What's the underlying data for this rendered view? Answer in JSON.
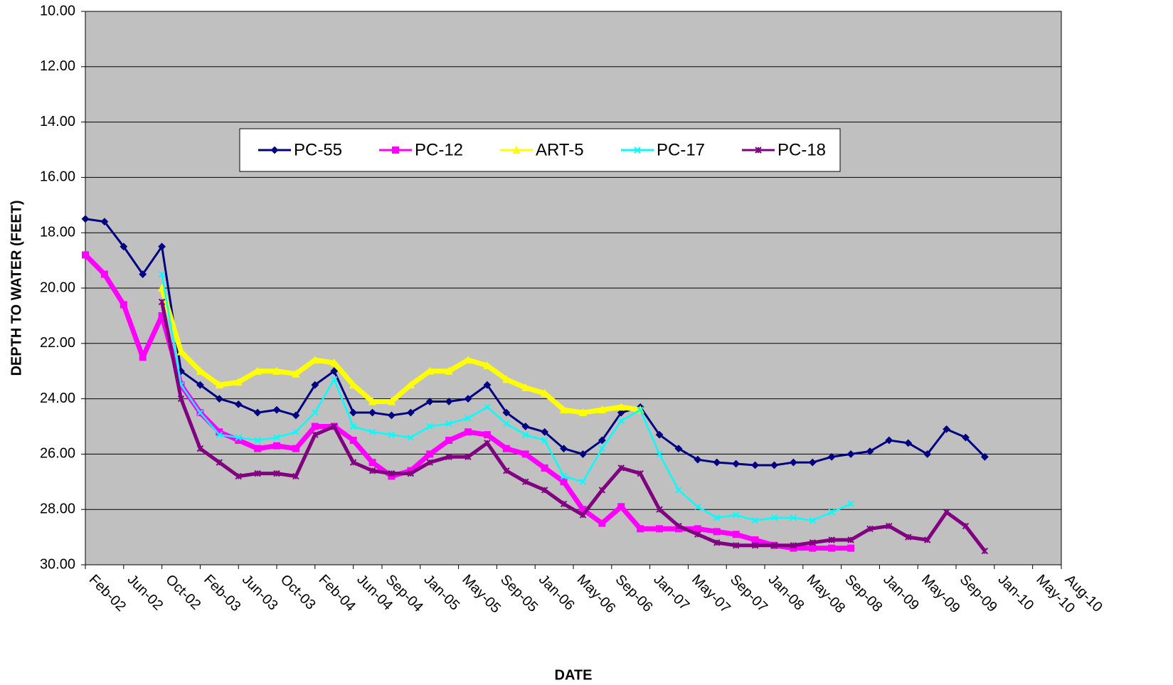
{
  "chart_data": {
    "type": "line",
    "y_label": "DEPTH TO WATER (FEET)",
    "x_label": "DATE",
    "ylim": [
      10,
      30
    ],
    "y_reversed": true,
    "grid": true,
    "legend": "top-center",
    "yticks": [
      {
        "value": 10,
        "label": "10.00"
      },
      {
        "value": 12,
        "label": "12.00"
      },
      {
        "value": 14,
        "label": "14.00"
      },
      {
        "value": 16,
        "label": "16.00"
      },
      {
        "value": 18,
        "label": "18.00"
      },
      {
        "value": 20,
        "label": "20.00"
      },
      {
        "value": 22,
        "label": "22.00"
      },
      {
        "value": 24,
        "label": "24.00"
      },
      {
        "value": 26,
        "label": "26.00"
      },
      {
        "value": 28,
        "label": "28.00"
      },
      {
        "value": 30,
        "label": "30.00"
      }
    ],
    "xlim": [
      "2002-02",
      "2010-08"
    ],
    "xticks": [
      {
        "value": "2002-02",
        "label": "Feb-02"
      },
      {
        "value": "2002-06",
        "label": "Jun-02"
      },
      {
        "value": "2002-10",
        "label": "Oct-02"
      },
      {
        "value": "2003-02",
        "label": "Feb-03"
      },
      {
        "value": "2003-06",
        "label": "Jun-03"
      },
      {
        "value": "2003-10",
        "label": "Oct-03"
      },
      {
        "value": "2004-02",
        "label": "Feb-04"
      },
      {
        "value": "2004-06",
        "label": "Jun-04"
      },
      {
        "value": "2004-09",
        "label": "Sep-04"
      },
      {
        "value": "2005-01",
        "label": "Jan-05"
      },
      {
        "value": "2005-05",
        "label": "May-05"
      },
      {
        "value": "2005-09",
        "label": "Sep-05"
      },
      {
        "value": "2006-01",
        "label": "Jan-06"
      },
      {
        "value": "2006-05",
        "label": "May-06"
      },
      {
        "value": "2006-09",
        "label": "Sep-06"
      },
      {
        "value": "2007-01",
        "label": "Jan-07"
      },
      {
        "value": "2007-05",
        "label": "May-07"
      },
      {
        "value": "2007-09",
        "label": "Sep-07"
      },
      {
        "value": "2008-01",
        "label": "Jan-08"
      },
      {
        "value": "2008-05",
        "label": "May-08"
      },
      {
        "value": "2008-09",
        "label": "Sep-08"
      },
      {
        "value": "2009-01",
        "label": "Jan-09"
      },
      {
        "value": "2009-05",
        "label": "May-09"
      },
      {
        "value": "2009-09",
        "label": "Sep-09"
      },
      {
        "value": "2010-01",
        "label": "Jan-10"
      },
      {
        "value": "2010-05",
        "label": "May-10"
      },
      {
        "value": "2010-08",
        "label": "Aug-10"
      }
    ],
    "x": [
      "2002-02",
      "2002-04",
      "2002-06",
      "2002-08",
      "2002-10",
      "2002-12",
      "2003-02",
      "2003-04",
      "2003-06",
      "2003-08",
      "2003-10",
      "2003-12",
      "2004-02",
      "2004-04",
      "2004-06",
      "2004-08",
      "2004-10",
      "2004-12",
      "2005-02",
      "2005-04",
      "2005-06",
      "2005-08",
      "2005-10",
      "2005-12",
      "2006-02",
      "2006-04",
      "2006-06",
      "2006-08",
      "2006-10",
      "2006-12",
      "2007-02",
      "2007-04",
      "2007-06",
      "2007-08",
      "2007-10",
      "2007-12",
      "2008-02",
      "2008-04",
      "2008-06",
      "2008-08",
      "2008-10",
      "2008-12",
      "2009-02",
      "2009-04",
      "2009-06",
      "2009-08",
      "2009-10",
      "2009-12"
    ],
    "series": [
      {
        "name": "PC-55",
        "color": "#000080",
        "marker": "diamond",
        "values": [
          17.5,
          17.6,
          18.5,
          19.5,
          18.5,
          23.0,
          23.5,
          24.0,
          24.2,
          24.5,
          24.4,
          24.6,
          23.5,
          23.0,
          24.5,
          24.5,
          24.6,
          24.5,
          24.1,
          24.1,
          24.0,
          23.5,
          24.5,
          25.0,
          25.2,
          25.8,
          26.0,
          25.5,
          24.5,
          24.3,
          25.3,
          25.8,
          26.2,
          26.3,
          26.35,
          26.4,
          26.4,
          26.3,
          26.3,
          26.1,
          26.0,
          25.9,
          25.5,
          25.6,
          26.0,
          25.1,
          25.4,
          26.1
        ]
      },
      {
        "name": "PC-12",
        "color": "#ff00ff",
        "marker": "square",
        "values": [
          18.8,
          19.5,
          20.6,
          22.5,
          21.0,
          23.5,
          24.5,
          25.2,
          25.5,
          25.8,
          25.7,
          25.8,
          25.0,
          25.0,
          25.5,
          26.3,
          26.8,
          26.6,
          26.0,
          25.5,
          25.2,
          25.3,
          25.8,
          26.0,
          26.5,
          27.0,
          28.0,
          28.5,
          27.9,
          28.7,
          28.7,
          28.7,
          28.7,
          28.8,
          28.9,
          29.1,
          29.3,
          29.4,
          29.4,
          29.4,
          29.4,
          null,
          null,
          null,
          null,
          null,
          null,
          null
        ]
      },
      {
        "name": "ART-5",
        "color": "#ffff00",
        "marker": "triangle",
        "values": [
          null,
          null,
          null,
          null,
          20.0,
          22.3,
          23.0,
          23.5,
          23.4,
          23.0,
          23.0,
          23.1,
          22.6,
          22.7,
          23.5,
          24.1,
          24.1,
          23.5,
          23.0,
          23.0,
          22.6,
          22.8,
          23.3,
          23.6,
          23.8,
          24.4,
          24.5,
          24.4,
          24.3,
          24.4,
          null,
          null,
          null,
          null,
          null,
          null,
          null,
          null,
          null,
          null,
          null,
          null,
          null,
          null,
          null,
          null,
          null,
          null
        ]
      },
      {
        "name": "PC-17",
        "color": "#00ffff",
        "marker": "cross",
        "values": [
          null,
          null,
          null,
          null,
          19.5,
          23.5,
          24.5,
          25.3,
          25.4,
          25.5,
          25.4,
          25.2,
          24.5,
          23.3,
          25.0,
          25.2,
          25.3,
          25.4,
          25.0,
          24.9,
          24.7,
          24.3,
          24.9,
          25.3,
          25.5,
          26.8,
          27.0,
          25.8,
          24.8,
          24.4,
          26.0,
          27.3,
          27.9,
          28.3,
          28.2,
          28.4,
          28.3,
          28.3,
          28.4,
          28.1,
          27.8,
          null,
          null,
          null,
          null,
          null,
          null,
          null
        ]
      },
      {
        "name": "PC-18",
        "color": "#800080",
        "marker": "star",
        "values": [
          null,
          null,
          null,
          null,
          20.5,
          24.0,
          25.8,
          26.3,
          26.8,
          26.7,
          26.7,
          26.8,
          25.3,
          25.0,
          26.3,
          26.6,
          26.7,
          26.7,
          26.3,
          26.1,
          26.1,
          25.6,
          26.6,
          27.0,
          27.3,
          27.8,
          28.2,
          27.3,
          26.5,
          26.7,
          28.0,
          28.6,
          28.9,
          29.2,
          29.3,
          29.3,
          29.3,
          29.3,
          29.2,
          29.1,
          29.1,
          28.7,
          28.6,
          29.0,
          29.1,
          28.1,
          28.6,
          29.5
        ]
      }
    ]
  }
}
